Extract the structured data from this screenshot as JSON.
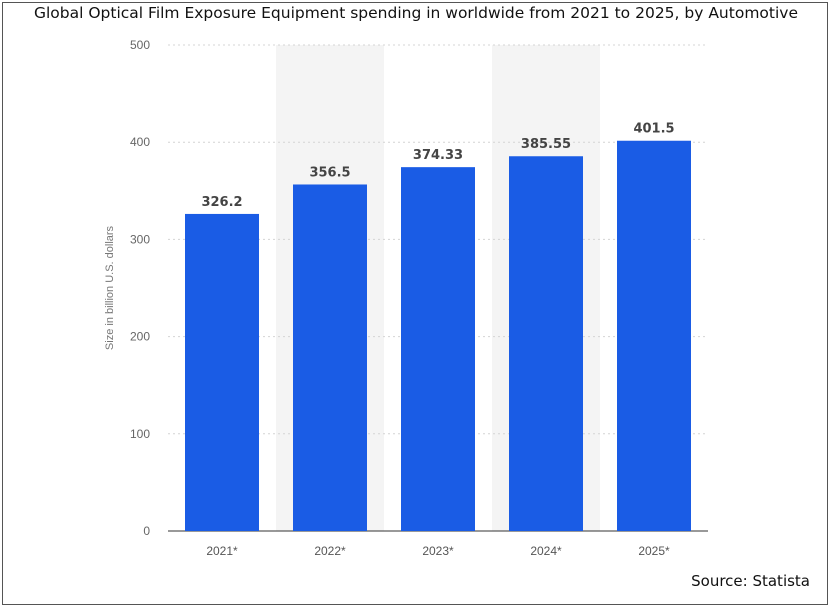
{
  "title": "Global Optical Film Exposure Equipment spending in worldwide from 2021 to 2025, by Automotive",
  "source": "Source: Statista",
  "chart_data": {
    "type": "bar",
    "title": "Global Optical Film Exposure Equipment spending in worldwide from 2021 to 2025, by Automotive",
    "categories": [
      "2021*",
      "2022*",
      "2023*",
      "2024*",
      "2025*"
    ],
    "values": [
      326.2,
      356.5,
      374.33,
      385.55,
      401.5
    ],
    "value_labels": [
      "326.2",
      "356.5",
      "374.33",
      "385.55",
      "401.5"
    ],
    "xlabel": "",
    "ylabel": "Size in billion U.S. dollars",
    "ylim": [
      0,
      500
    ],
    "yticks": [
      0,
      100,
      200,
      300,
      400,
      500
    ],
    "grid": true,
    "bar_color": "#1a5ce5",
    "band_color": "#f4f4f4"
  }
}
